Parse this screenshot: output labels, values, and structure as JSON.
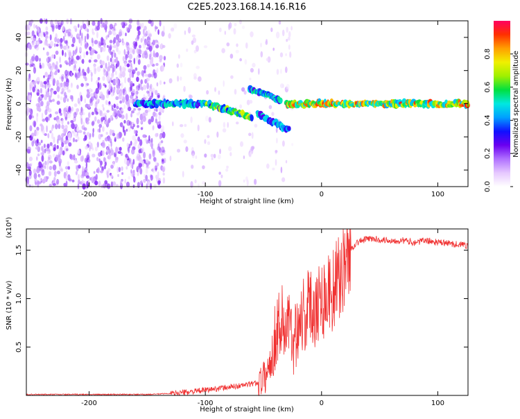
{
  "title": "C2E5.2023.168.14.16.R16",
  "chart_data": [
    {
      "type": "heatmap",
      "xlabel": "Height of straight line (km)",
      "ylabel": "Frequency (Hz)",
      "xlim": [
        -254,
        126
      ],
      "ylim": [
        -50,
        50
      ],
      "x_ticks": [
        -200,
        -100,
        0,
        100
      ],
      "x_tick_labels": [
        "-200",
        "-100",
        "0",
        "100"
      ],
      "y_ticks": [
        -40,
        -20,
        0,
        20,
        40
      ],
      "y_tick_labels": [
        "-40",
        "-20",
        "0",
        "20",
        "40"
      ],
      "grid": false,
      "colorbar": {
        "label": "Normalized spectral amplitude",
        "range": [
          0,
          1
        ],
        "ticks": [
          0.0,
          0.2,
          0.4,
          0.6,
          0.8
        ],
        "tick_labels": [
          "0.0",
          "0.2",
          "0.4",
          "0.6",
          "0.8"
        ],
        "colormap": [
          "#ffffff",
          "#e6c8ff",
          "#b070ff",
          "#6a00f0",
          "#1010ff",
          "#00a0ff",
          "#00e8e0",
          "#00e040",
          "#a0f000",
          "#f0f000",
          "#ffa000",
          "#ff3000",
          "#ff0060"
        ]
      },
      "features": [
        {
          "kind": "scatter-noise",
          "x": [
            -254,
            -135
          ],
          "freq": [
            -50,
            50
          ],
          "amplitude": 0.15
        },
        {
          "kind": "sparse-noise",
          "x": [
            -135,
            -25
          ],
          "freq": [
            -50,
            50
          ],
          "amplitude": 0.08
        },
        {
          "kind": "ridge",
          "x": [
            -160,
            -100
          ],
          "freq_start": 0,
          "freq_end": 0,
          "amplitude": 0.45
        },
        {
          "kind": "ridge",
          "x": [
            -100,
            -60
          ],
          "freq_start": 0,
          "freq_end": -8,
          "amplitude": 0.6
        },
        {
          "kind": "ridge",
          "x": [
            -62,
            -35
          ],
          "freq_start": 9,
          "freq_end": 2,
          "amplitude": 0.45
        },
        {
          "kind": "ridge",
          "x": [
            -55,
            -28
          ],
          "freq_start": -6,
          "freq_end": -16,
          "amplitude": 0.45
        },
        {
          "kind": "ridge",
          "x": [
            -30,
            126
          ],
          "freq_start": 0,
          "freq_end": 0,
          "amplitude": 0.75
        }
      ]
    },
    {
      "type": "line",
      "xlabel": "Height of straight line (km)",
      "ylabel": "SNR (10 * v/v)",
      "y_scale_label": "(x10⁴)",
      "xlim": [
        -254,
        126
      ],
      "ylim": [
        0,
        1.72
      ],
      "x_ticks": [
        -200,
        -100,
        0,
        100
      ],
      "x_tick_labels": [
        "-200",
        "-100",
        "0",
        "100"
      ],
      "y_ticks": [
        0.5,
        1.0,
        1.5
      ],
      "y_tick_labels": [
        "0.5",
        "1.0",
        "1.5"
      ],
      "grid": false,
      "series": [
        {
          "color": "#f03030",
          "x": [
            -254,
            -220,
            -180,
            -150,
            -130,
            -110,
            -90,
            -70,
            -55,
            -48,
            -44,
            -40,
            -36,
            -32,
            -28,
            -25,
            -20,
            -15,
            -10,
            -5,
            0,
            5,
            10,
            15,
            20,
            25,
            30,
            35,
            40,
            50,
            60,
            70,
            80,
            90,
            100,
            110,
            126
          ],
          "values": [
            0.01,
            0.01,
            0.01,
            0.01,
            0.02,
            0.04,
            0.07,
            0.1,
            0.13,
            0.2,
            0.35,
            0.6,
            0.8,
            0.7,
            0.75,
            0.5,
            0.8,
            0.85,
            0.9,
            0.95,
            1.0,
            1.05,
            1.1,
            1.2,
            1.35,
            1.5,
            1.58,
            1.6,
            1.62,
            1.61,
            1.6,
            1.6,
            1.58,
            1.6,
            1.58,
            1.57,
            1.55
          ]
        }
      ]
    }
  ]
}
